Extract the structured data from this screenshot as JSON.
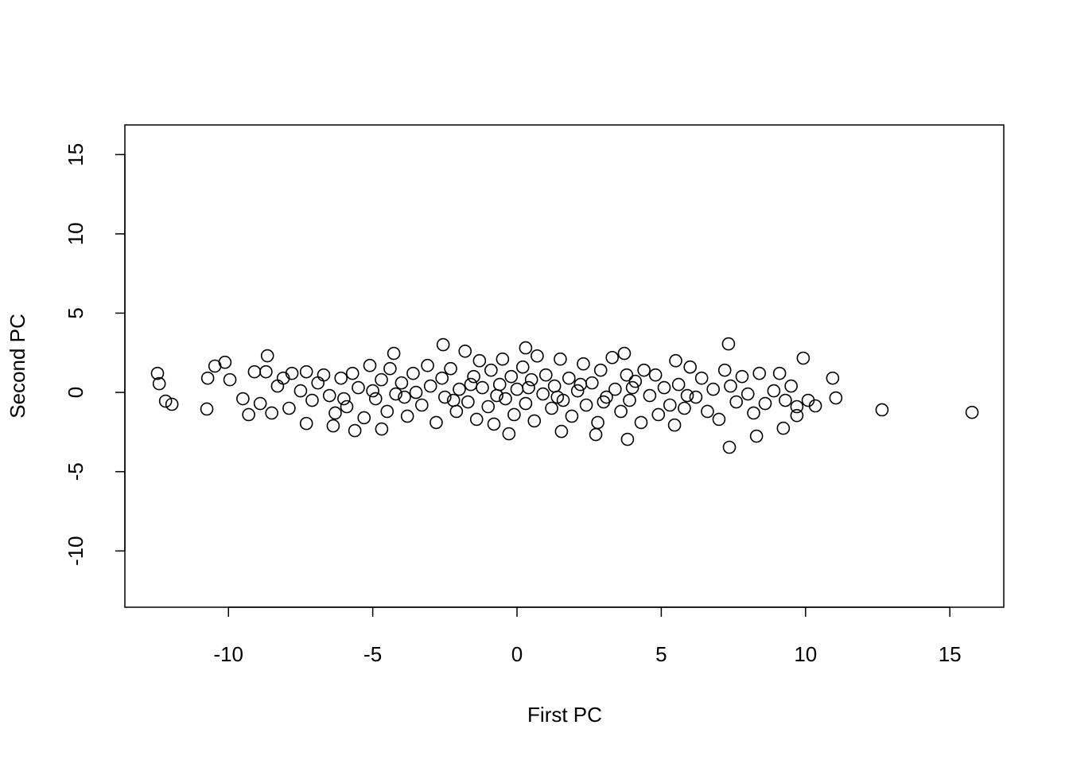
{
  "chart_data": {
    "type": "scatter",
    "xlabel": "First PC",
    "ylabel": "Second PC",
    "color": "#000000",
    "xlim": [
      -13.59,
      16.87
    ],
    "ylim": [
      -13.55,
      16.87
    ],
    "xticks": [
      -10,
      -5,
      0,
      5,
      10,
      15
    ],
    "yticks": [
      -10,
      -5,
      0,
      5,
      10,
      15
    ],
    "x": [
      -12.46,
      -12.4,
      -12.18,
      -11.96,
      -10.75,
      -10.72,
      -10.47,
      -10.12,
      -9.95,
      15.77,
      12.65,
      11.05,
      10.94,
      9.92,
      7.33,
      7.36,
      -2.56,
      0.3,
      -8.65,
      -5.62,
      3.83,
      8.3,
      9.23,
      10.34,
      10.09,
      9.7,
      -0.28,
      2.73,
      -4.27,
      3.72,
      -7.3,
      -6.37,
      -4.69,
      5.46,
      1.54,
      -9.5,
      -9.3,
      -9.1,
      -8.9,
      -8.7,
      -8.5,
      -8.3,
      -8.1,
      -7.9,
      -7.8,
      -7.5,
      -7.3,
      -7.1,
      -6.9,
      -6.7,
      -6.5,
      -6.3,
      -6.1,
      -5.9,
      -5.7,
      -5.5,
      -5.3,
      -5.1,
      -4.9,
      -4.7,
      -4.5,
      -4.4,
      -4.2,
      -4.0,
      -3.8,
      -3.6,
      -3.5,
      -3.3,
      -3.1,
      -3.0,
      -2.8,
      -2.6,
      -2.5,
      -2.3,
      -2.1,
      -2.0,
      -1.8,
      -1.7,
      -1.5,
      -1.4,
      -1.3,
      -1.2,
      -1.0,
      -0.9,
      -0.8,
      -0.6,
      -0.5,
      -0.4,
      -0.2,
      -0.1,
      0.0,
      0.2,
      0.3,
      0.5,
      0.6,
      0.7,
      0.9,
      1.0,
      1.2,
      1.3,
      1.5,
      1.6,
      1.8,
      1.9,
      2.1,
      2.3,
      2.4,
      2.6,
      2.8,
      2.9,
      3.1,
      3.3,
      3.4,
      3.6,
      3.8,
      3.9,
      4.1,
      4.3,
      4.4,
      4.6,
      4.8,
      4.9,
      5.1,
      5.3,
      5.5,
      5.6,
      5.8,
      6.0,
      6.2,
      6.4,
      6.6,
      6.8,
      7.0,
      7.2,
      7.4,
      7.6,
      7.8,
      8.0,
      8.2,
      8.4,
      8.6,
      8.9,
      9.1,
      9.3,
      9.5,
      9.7,
      -2.2,
      -1.6,
      -0.7,
      0.4,
      1.4,
      2.2,
      3.0,
      4.0,
      -3.9,
      -5.0,
      -6.0,
      5.9
    ],
    "values": [
      1.2,
      0.55,
      -0.55,
      -0.75,
      -1.05,
      0.9,
      1.66,
      1.9,
      0.8,
      -1.26,
      -1.1,
      -0.35,
      0.9,
      2.16,
      3.06,
      -3.46,
      3.01,
      2.81,
      2.31,
      -2.41,
      -2.96,
      -2.76,
      -2.26,
      -0.85,
      -0.5,
      -1.46,
      -2.61,
      -2.66,
      2.46,
      2.46,
      -1.96,
      -2.11,
      -2.31,
      -2.06,
      -2.46,
      -0.4,
      -1.4,
      1.3,
      -0.7,
      1.3,
      -1.3,
      0.4,
      0.9,
      -1.0,
      1.2,
      0.1,
      1.3,
      -0.5,
      0.6,
      1.1,
      -0.2,
      -1.3,
      0.9,
      -0.9,
      1.2,
      0.3,
      -1.6,
      1.7,
      -0.4,
      0.8,
      -1.2,
      1.5,
      -0.1,
      0.6,
      -1.5,
      1.2,
      0.0,
      -0.8,
      1.7,
      0.4,
      -1.9,
      0.9,
      -0.3,
      1.5,
      -1.2,
      0.2,
      2.6,
      -0.6,
      1.0,
      -1.7,
      2.0,
      0.3,
      -0.9,
      1.4,
      -2.0,
      0.5,
      2.1,
      -0.4,
      1.0,
      -1.4,
      0.2,
      1.6,
      -0.7,
      0.8,
      -1.8,
      2.3,
      -0.1,
      1.1,
      -1.0,
      0.4,
      2.1,
      -0.5,
      0.9,
      -1.5,
      0.1,
      1.8,
      -0.8,
      0.6,
      -1.9,
      1.4,
      -0.3,
      2.2,
      0.2,
      -1.2,
      1.1,
      -0.5,
      0.7,
      -1.9,
      1.4,
      -0.2,
      1.1,
      -1.4,
      0.3,
      -0.8,
      2.0,
      0.5,
      -1.0,
      1.6,
      -0.3,
      0.9,
      -1.2,
      0.2,
      -1.7,
      1.4,
      0.4,
      -0.6,
      1.0,
      -0.1,
      -1.3,
      1.2,
      -0.7,
      0.1,
      1.2,
      -0.5,
      0.4,
      -0.9,
      -0.5,
      0.5,
      -0.2,
      0.3,
      -0.3,
      0.5,
      -0.6,
      0.3,
      -0.3,
      0.1,
      -0.4,
      -0.2
    ]
  }
}
